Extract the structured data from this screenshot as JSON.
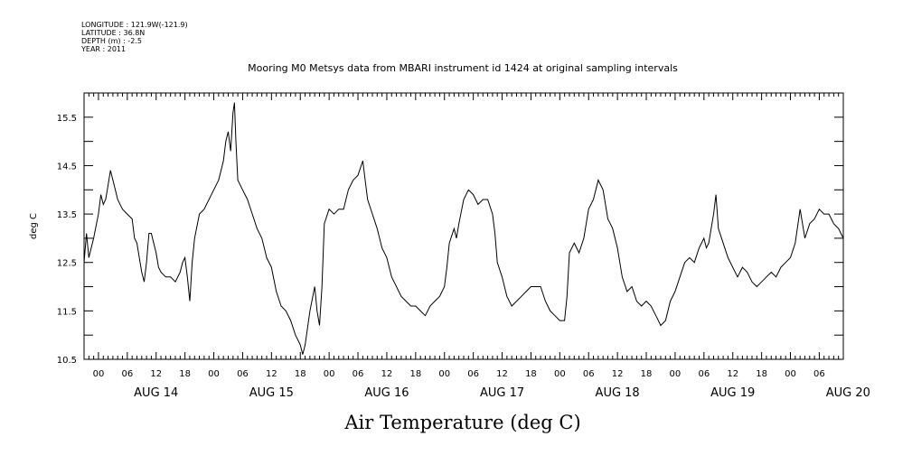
{
  "meta": {
    "longitude": "LONGITUDE : 121.9W(-121.9)",
    "latitude": "LATITUDE : 36.8N",
    "depth": "DEPTH (m) : -2.5",
    "year": "YEAR : 2011"
  },
  "chart_data": {
    "type": "line",
    "title": "Mooring M0 Metsys data from MBARI instrument id 1424 at original sampling intervals",
    "xlabel": "Air Temperature (deg C)",
    "ylabel": "deg C",
    "x_units": "hours since AUG 14 00:00 (2011)",
    "xlim": [
      -3,
      155
    ],
    "ylim": [
      10.5,
      16.0
    ],
    "y_ticks": [
      "10.5",
      "11.5",
      "12.5",
      "13.5",
      "14.5",
      "15.5"
    ],
    "x_hour_ticks": [
      "00",
      "06",
      "12",
      "18"
    ],
    "day_labels": [
      "AUG 14",
      "AUG 15",
      "AUG 16",
      "AUG 17",
      "AUG 18",
      "AUG 19",
      "AUG 20"
    ],
    "grid": false,
    "series": [
      {
        "points": [
          [
            -3,
            12.5
          ],
          [
            -2.5,
            13.1
          ],
          [
            -2,
            12.6
          ],
          [
            -1,
            13.0
          ],
          [
            0,
            13.5
          ],
          [
            0.5,
            13.9
          ],
          [
            1,
            13.7
          ],
          [
            1.5,
            13.8
          ],
          [
            2,
            14.1
          ],
          [
            2.5,
            14.4
          ],
          [
            3,
            14.2
          ],
          [
            3.5,
            14.0
          ],
          [
            4,
            13.8
          ],
          [
            5,
            13.6
          ],
          [
            6,
            13.5
          ],
          [
            7,
            13.4
          ],
          [
            7.5,
            13.0
          ],
          [
            8,
            12.9
          ],
          [
            8.5,
            12.6
          ],
          [
            9,
            12.3
          ],
          [
            9.5,
            12.1
          ],
          [
            10,
            12.5
          ],
          [
            10.5,
            13.1
          ],
          [
            11,
            13.1
          ],
          [
            12,
            12.7
          ],
          [
            12.5,
            12.4
          ],
          [
            13,
            12.3
          ],
          [
            14,
            12.2
          ],
          [
            15,
            12.2
          ],
          [
            16,
            12.1
          ],
          [
            17,
            12.3
          ],
          [
            17.5,
            12.5
          ],
          [
            18,
            12.6
          ],
          [
            18.5,
            12.2
          ],
          [
            19,
            11.7
          ],
          [
            19.5,
            12.5
          ],
          [
            20,
            13.0
          ],
          [
            21,
            13.5
          ],
          [
            22,
            13.6
          ],
          [
            23,
            13.8
          ],
          [
            24,
            14.0
          ],
          [
            25,
            14.2
          ],
          [
            26,
            14.6
          ],
          [
            26.5,
            15.0
          ],
          [
            27,
            15.2
          ],
          [
            27.5,
            14.8
          ],
          [
            28,
            15.6
          ],
          [
            28.3,
            15.8
          ],
          [
            28.6,
            15.0
          ],
          [
            29,
            14.2
          ],
          [
            30,
            14.0
          ],
          [
            31,
            13.8
          ],
          [
            32,
            13.5
          ],
          [
            33,
            13.2
          ],
          [
            34,
            13.0
          ],
          [
            34.5,
            12.8
          ],
          [
            35,
            12.6
          ],
          [
            36,
            12.4
          ],
          [
            37,
            11.9
          ],
          [
            38,
            11.6
          ],
          [
            39,
            11.5
          ],
          [
            40,
            11.3
          ],
          [
            41,
            11.0
          ],
          [
            42,
            10.8
          ],
          [
            42.5,
            10.6
          ],
          [
            43,
            10.8
          ],
          [
            44,
            11.5
          ],
          [
            45,
            12.0
          ],
          [
            45.5,
            11.5
          ],
          [
            46,
            11.2
          ],
          [
            46.5,
            12.0
          ],
          [
            47,
            13.3
          ],
          [
            48,
            13.6
          ],
          [
            49,
            13.5
          ],
          [
            50,
            13.6
          ],
          [
            51,
            13.6
          ],
          [
            52,
            14.0
          ],
          [
            53,
            14.2
          ],
          [
            54,
            14.3
          ],
          [
            55,
            14.6
          ],
          [
            55.5,
            14.2
          ],
          [
            56,
            13.8
          ],
          [
            57,
            13.5
          ],
          [
            58,
            13.2
          ],
          [
            59,
            12.8
          ],
          [
            60,
            12.6
          ],
          [
            61,
            12.2
          ],
          [
            62,
            12.0
          ],
          [
            63,
            11.8
          ],
          [
            64,
            11.7
          ],
          [
            65,
            11.6
          ],
          [
            66,
            11.6
          ],
          [
            67,
            11.5
          ],
          [
            68,
            11.4
          ],
          [
            69,
            11.6
          ],
          [
            70,
            11.7
          ],
          [
            71,
            11.8
          ],
          [
            72,
            12.0
          ],
          [
            72.5,
            12.4
          ],
          [
            73,
            12.9
          ],
          [
            74,
            13.2
          ],
          [
            74.5,
            13.0
          ],
          [
            75,
            13.3
          ],
          [
            76,
            13.8
          ],
          [
            77,
            14.0
          ],
          [
            78,
            13.9
          ],
          [
            79,
            13.7
          ],
          [
            80,
            13.8
          ],
          [
            81,
            13.8
          ],
          [
            82,
            13.5
          ],
          [
            82.5,
            13.1
          ],
          [
            83,
            12.5
          ],
          [
            84,
            12.2
          ],
          [
            85,
            11.8
          ],
          [
            86,
            11.6
          ],
          [
            87,
            11.7
          ],
          [
            88,
            11.8
          ],
          [
            89,
            11.9
          ],
          [
            90,
            12.0
          ],
          [
            91,
            12.0
          ],
          [
            92,
            12.0
          ],
          [
            93,
            11.7
          ],
          [
            94,
            11.5
          ],
          [
            95,
            11.4
          ],
          [
            96,
            11.3
          ],
          [
            97,
            11.3
          ],
          [
            97.5,
            11.8
          ],
          [
            98,
            12.7
          ],
          [
            99,
            12.9
          ],
          [
            100,
            12.7
          ],
          [
            101,
            13.0
          ],
          [
            102,
            13.6
          ],
          [
            103,
            13.8
          ],
          [
            104,
            14.2
          ],
          [
            105,
            14.0
          ],
          [
            106,
            13.4
          ],
          [
            106.5,
            13.3
          ],
          [
            107,
            13.2
          ],
          [
            108,
            12.8
          ],
          [
            109,
            12.2
          ],
          [
            110,
            11.9
          ],
          [
            111,
            12.0
          ],
          [
            112,
            11.7
          ],
          [
            113,
            11.6
          ],
          [
            114,
            11.7
          ],
          [
            115,
            11.6
          ],
          [
            116,
            11.4
          ],
          [
            117,
            11.2
          ],
          [
            118,
            11.3
          ],
          [
            119,
            11.7
          ],
          [
            120,
            11.9
          ],
          [
            121,
            12.2
          ],
          [
            122,
            12.5
          ],
          [
            123,
            12.6
          ],
          [
            124,
            12.5
          ],
          [
            125,
            12.8
          ],
          [
            126,
            13.0
          ],
          [
            126.5,
            12.8
          ],
          [
            127,
            12.9
          ],
          [
            128,
            13.5
          ],
          [
            128.5,
            13.9
          ],
          [
            129,
            13.2
          ],
          [
            130,
            12.9
          ],
          [
            131,
            12.6
          ],
          [
            132,
            12.4
          ],
          [
            133,
            12.2
          ],
          [
            134,
            12.4
          ],
          [
            135,
            12.3
          ],
          [
            136,
            12.1
          ],
          [
            137,
            12.0
          ],
          [
            138,
            12.1
          ],
          [
            139,
            12.2
          ],
          [
            140,
            12.3
          ],
          [
            141,
            12.2
          ],
          [
            142,
            12.4
          ],
          [
            143,
            12.5
          ],
          [
            144,
            12.6
          ],
          [
            145,
            12.9
          ],
          [
            146,
            13.6
          ],
          [
            147,
            13.0
          ],
          [
            148,
            13.3
          ],
          [
            149,
            13.4
          ],
          [
            150,
            13.6
          ],
          [
            151,
            13.5
          ],
          [
            152,
            13.5
          ],
          [
            153,
            13.3
          ],
          [
            154,
            13.2
          ],
          [
            155,
            13.0
          ]
        ]
      }
    ]
  }
}
